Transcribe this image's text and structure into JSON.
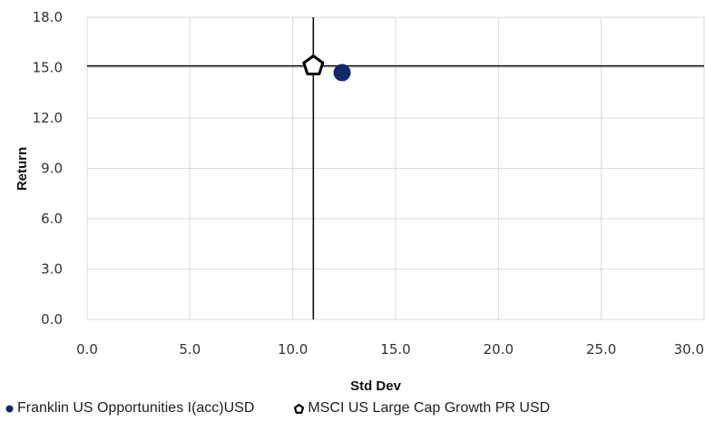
{
  "chart_data": {
    "type": "scatter",
    "xlabel": "Std Dev",
    "ylabel": "Return",
    "xlim": [
      0,
      30
    ],
    "ylim": [
      0,
      18
    ],
    "x_ticks": [
      "0.0",
      "5.0",
      "10.0",
      "15.0",
      "20.0",
      "25.0",
      "30.0"
    ],
    "y_ticks": [
      "0.0",
      "3.0",
      "6.0",
      "9.0",
      "12.0",
      "15.0",
      "18.0"
    ],
    "grid": true,
    "crosshair": {
      "x": 11.0,
      "y": 15.1
    },
    "legend_position": "bottom",
    "series": [
      {
        "name": "Franklin US Opportunities I(acc)USD",
        "marker": "circle",
        "color": "#14296b",
        "points": [
          {
            "x": 12.4,
            "y": 14.7
          }
        ]
      },
      {
        "name": "MSCI US Large Cap Growth PR USD",
        "marker": "pentagon",
        "color": "#000000",
        "points": [
          {
            "x": 11.0,
            "y": 15.1
          }
        ]
      }
    ]
  }
}
